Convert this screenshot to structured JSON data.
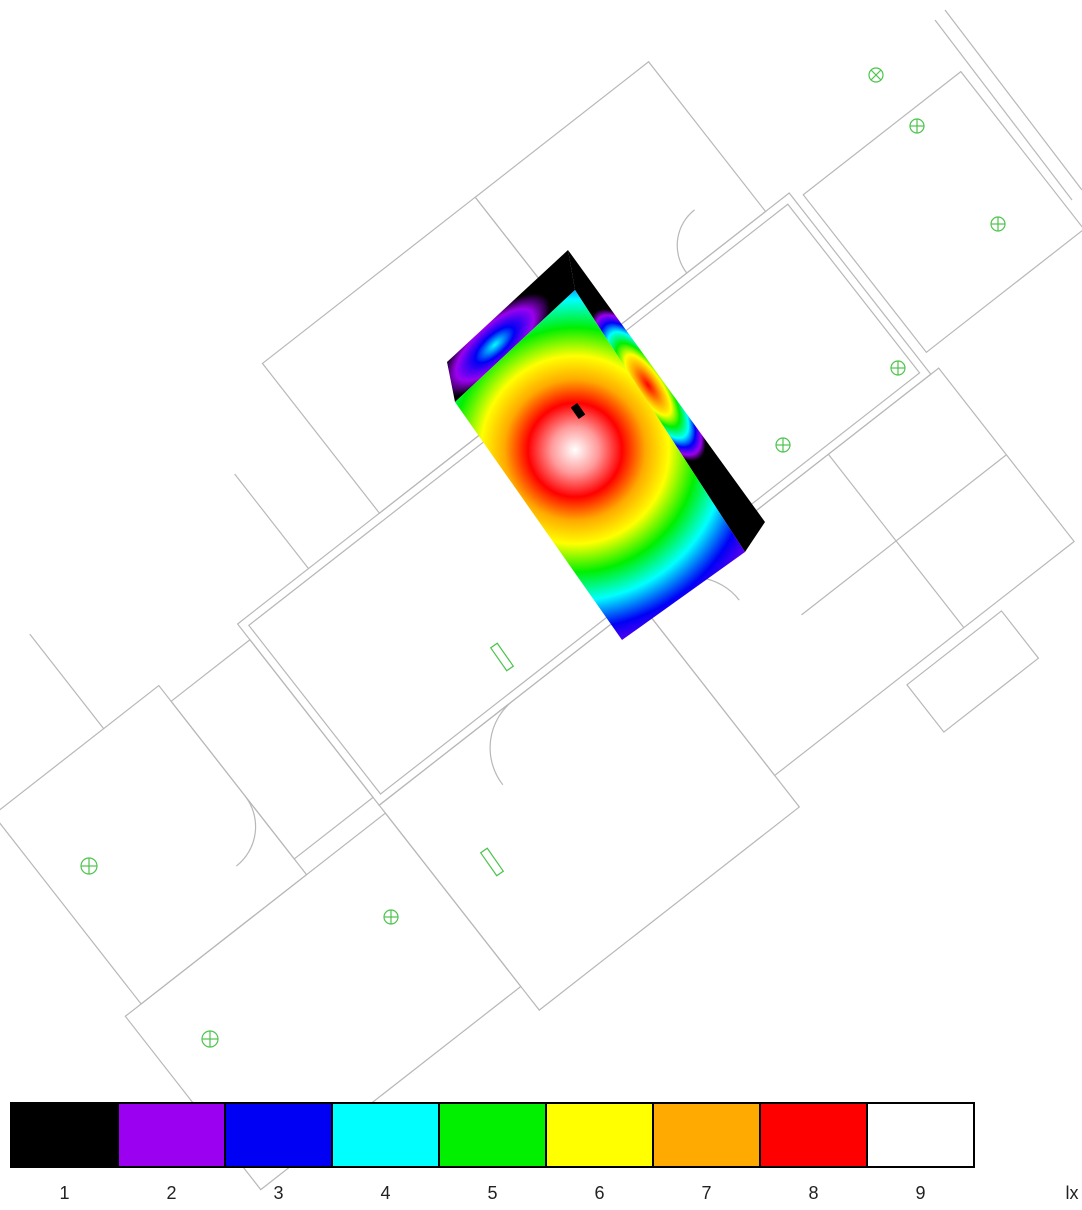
{
  "legend": {
    "unit": "lx",
    "items": [
      {
        "value": 1,
        "color": "#000000"
      },
      {
        "value": 2,
        "color": "#9b00f0"
      },
      {
        "value": 3,
        "color": "#0000f5"
      },
      {
        "value": 4,
        "color": "#00ffff"
      },
      {
        "value": 5,
        "color": "#00f000"
      },
      {
        "value": 6,
        "color": "#ffff00"
      },
      {
        "value": 7,
        "color": "#ffaa00"
      },
      {
        "value": 8,
        "color": "#ff0000"
      },
      {
        "value": 9,
        "color": "#ffffff"
      }
    ]
  }
}
